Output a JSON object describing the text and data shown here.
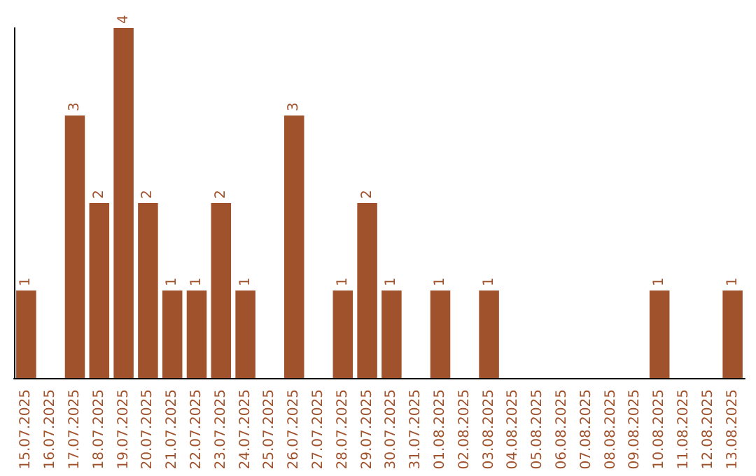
{
  "chart_data": {
    "type": "bar",
    "categories": [
      "15.07.2025",
      "16.07.2025",
      "17.07.2025",
      "18.07.2025",
      "19.07.2025",
      "20.07.2025",
      "21.07.2025",
      "22.07.2025",
      "23.07.2025",
      "24.07.2025",
      "25.07.2025",
      "26.07.2025",
      "27.07.2025",
      "28.07.2025",
      "29.07.2025",
      "30.07.2025",
      "31.07.2025",
      "01.08.2025",
      "02.08.2025",
      "03.08.2025",
      "04.08.2025",
      "05.08.2025",
      "06.08.2025",
      "07.08.2025",
      "08.08.2025",
      "09.08.2025",
      "10.08.2025",
      "11.08.2025",
      "12.08.2025",
      "13.08.2025"
    ],
    "values": [
      1,
      0,
      3,
      2,
      4,
      2,
      1,
      1,
      2,
      1,
      0,
      3,
      0,
      1,
      2,
      1,
      0,
      1,
      0,
      1,
      0,
      0,
      0,
      0,
      0,
      0,
      1,
      0,
      0,
      1
    ],
    "value_labels": [
      "1",
      null,
      "3",
      "2",
      "4",
      "2",
      "1",
      "1",
      "2",
      "1",
      null,
      "3",
      null,
      "1",
      "2",
      "1",
      null,
      "1",
      null,
      "1",
      null,
      null,
      null,
      null,
      null,
      null,
      "1",
      null,
      null,
      "1"
    ],
    "color": "#a0522d",
    "ylim": [
      0,
      4
    ],
    "tick_labels": "x",
    "grid": false
  }
}
